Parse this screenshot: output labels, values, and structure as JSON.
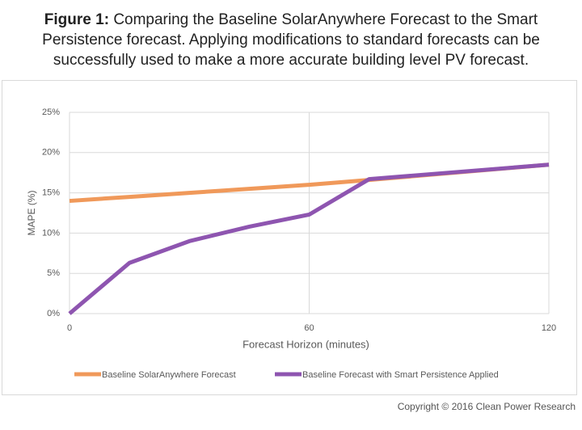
{
  "chart_data": {
    "type": "line",
    "title_label": "Figure 1:",
    "title": "Comparing the Baseline SolarAnywhere Forecast to the Smart Persistence forecast. Applying modifications to standard forecasts can be successfully used to make a more accurate building level PV forecast.",
    "x_label": "Forecast Horizon (minutes)",
    "y_label": "MAPE (%)",
    "x": [
      0,
      15,
      30,
      45,
      60,
      75,
      120
    ],
    "series": [
      {
        "name": "Baseline SolarAnywhere Forecast",
        "color": "#f0995a",
        "values": [
          14,
          14.5,
          15,
          15.5,
          16,
          16.6,
          18.5
        ]
      },
      {
        "name": "Baseline Forecast with Smart Persistence Applied",
        "color": "#8e55b0",
        "values": [
          0,
          6.3,
          9,
          10.8,
          12.3,
          16.7,
          18.5
        ]
      }
    ],
    "xlim": [
      0,
      120
    ],
    "xticks": [
      0,
      60,
      120
    ],
    "ylim": [
      0,
      25
    ],
    "yticks": [
      {
        "value": 0,
        "label": "0%"
      },
      {
        "value": 5,
        "label": "5%"
      },
      {
        "value": 10,
        "label": "10%"
      },
      {
        "value": 15,
        "label": "15%"
      },
      {
        "value": 20,
        "label": "20%"
      },
      {
        "value": 25,
        "label": "25%"
      }
    ],
    "grid": true,
    "legend": "bottom",
    "footer": "Copyright © 2016 Clean Power Research"
  }
}
